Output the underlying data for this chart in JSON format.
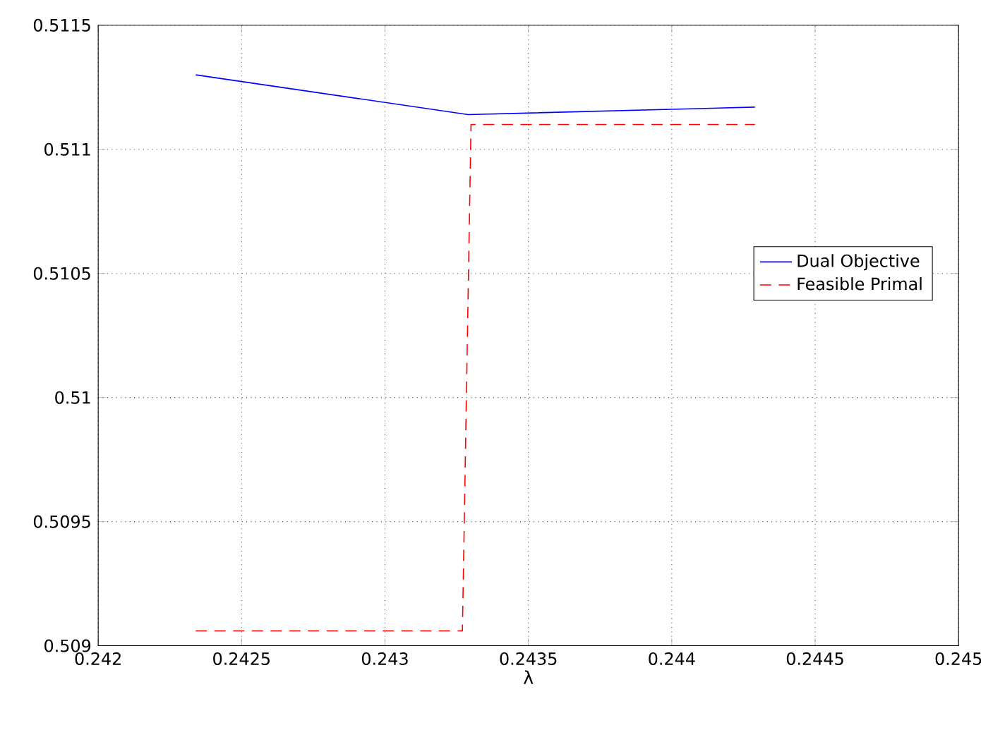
{
  "chart_data": {
    "type": "line",
    "xlabel": "λ",
    "xlim": [
      0.242,
      0.245
    ],
    "ylim": [
      0.509,
      0.5115
    ],
    "xticks": [
      0.242,
      0.2425,
      0.243,
      0.2435,
      0.244,
      0.2445,
      0.245
    ],
    "yticks": [
      0.509,
      0.5095,
      0.51,
      0.5105,
      0.511,
      0.5115
    ],
    "grid": true,
    "legend": "right",
    "series": [
      {
        "name": "Dual Objective",
        "color": "#0000ff",
        "line_style": "solid",
        "x": [
          0.24234,
          0.24329,
          0.24429
        ],
        "values": [
          0.5113,
          0.51114,
          0.51117
        ]
      },
      {
        "name": "Feasible Primal",
        "color": "#ff0000",
        "line_style": "dashed",
        "x": [
          0.24234,
          0.24327,
          0.2433,
          0.24429
        ],
        "values": [
          0.50906,
          0.50906,
          0.5111,
          0.5111
        ]
      }
    ]
  }
}
